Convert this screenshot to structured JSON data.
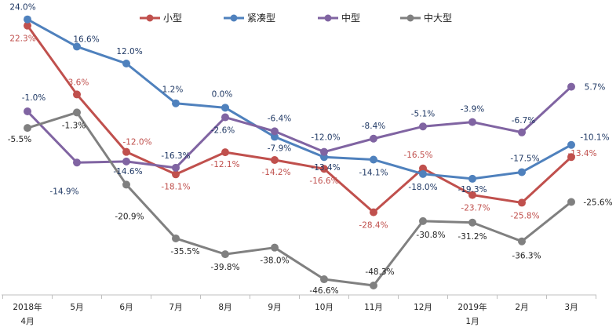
{
  "chart_data": {
    "type": "line",
    "title": "",
    "xlabel": "",
    "ylabel": "",
    "ylim": [
      -50,
      25
    ],
    "grid": false,
    "legend_position": "top",
    "categories": [
      "2018年4月",
      "5月",
      "6月",
      "7月",
      "8月",
      "9月",
      "10月",
      "11月",
      "12月",
      "2019年1月",
      "2月",
      "3月"
    ],
    "tick_labels": [
      [
        "2018年",
        "4月"
      ],
      [
        "5月"
      ],
      [
        "6月"
      ],
      [
        "7月"
      ],
      [
        "8月"
      ],
      [
        "9月"
      ],
      [
        "10月"
      ],
      [
        "11月"
      ],
      [
        "12月"
      ],
      [
        "2019年",
        "1月"
      ],
      [
        "2月"
      ],
      [
        "3月"
      ]
    ],
    "series": [
      {
        "name": "小型",
        "color": "#c0504d",
        "values": [
          22.3,
          3.6,
          -12.0,
          -18.1,
          -12.1,
          -14.2,
          -16.6,
          -28.4,
          -16.5,
          -23.7,
          -25.8,
          -13.4
        ],
        "labels": [
          "22.3%",
          "3.6%",
          "-12.0%",
          "-18.1%",
          "-12.1%",
          "-14.2%",
          "-16.6%",
          "-28.4%",
          "-16.5%",
          "-23.7%",
          "-25.8%",
          "-13.4%"
        ]
      },
      {
        "name": "紧凑型",
        "color": "#4f81bd",
        "values": [
          24.0,
          16.6,
          12.0,
          1.2,
          0.0,
          -7.9,
          -13.4,
          -14.1,
          -18.0,
          -19.3,
          -17.5,
          -10.1
        ],
        "labels": [
          "24.0%",
          "16.6%",
          "12.0%",
          "1.2%",
          "0.0%",
          "-7.9%",
          "-13.4%",
          "-14.1%",
          "-18.0%",
          "-19.3%",
          "-17.5%",
          "-10.1%"
        ]
      },
      {
        "name": "中型",
        "color": "#8064a2",
        "values": [
          -1.0,
          -14.9,
          -14.6,
          -16.3,
          -2.6,
          -6.4,
          -12.0,
          -8.4,
          -5.1,
          -3.9,
          -6.7,
          5.7
        ],
        "labels": [
          "-1.0%",
          "-14.9%",
          "-14.6%",
          "-16.3%",
          "-2.6%",
          "-6.4%",
          "-12.0%",
          "-8.4%",
          "-5.1%",
          "-3.9%",
          "-6.7%",
          "5.7%"
        ]
      },
      {
        "name": "中大型",
        "color": "#808080",
        "values": [
          -5.5,
          -1.3,
          -20.9,
          -35.5,
          -39.8,
          -38.0,
          -46.6,
          -48.3,
          -30.8,
          -31.2,
          -36.3,
          -25.6
        ],
        "labels": [
          "-5.5%",
          "-1.3%",
          "-20.9%",
          "-35.5%",
          "-39.8%",
          "-38.0%",
          "-46.6%",
          "-48.3%",
          "-30.8%",
          "-31.2%",
          "-36.3%",
          "-25.6%"
        ]
      }
    ]
  }
}
